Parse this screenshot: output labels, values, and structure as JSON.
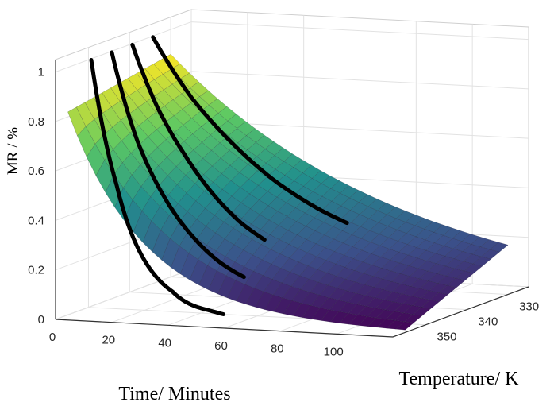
{
  "chart_data": {
    "type": "surface",
    "zlabel": "MR / %",
    "xlabel": "Time/ Minutes",
    "ylabel": "Temperature/ K",
    "x_ticks": [
      "0",
      "20",
      "40",
      "60",
      "80",
      "100"
    ],
    "y_ticks": [
      "330",
      "340",
      "350"
    ],
    "z_ticks": [
      "0",
      "0.2",
      "0.4",
      "0.6",
      "0.8",
      "1"
    ],
    "xlim": [
      0,
      120
    ],
    "ylim": [
      325,
      358
    ],
    "zlim": [
      0,
      1.05
    ],
    "grid": true,
    "colormap": [
      "#440154",
      "#3b528b",
      "#21908d",
      "#5dc963",
      "#fde725"
    ],
    "surface": {
      "description_values": "model surface MR(t, T)",
      "t_range": [
        0,
        120
      ],
      "T_range": [
        330,
        355
      ],
      "MR_at_t0": [
        0.82,
        0.9
      ],
      "MR_at_t120": [
        0.01,
        0.2
      ]
    },
    "series": [
      {
        "values": [
          [
            1,
            1.0
          ],
          [
            10,
            0.5
          ],
          [
            20,
            0.2
          ],
          [
            30,
            0.08
          ],
          [
            40,
            0.02
          ],
          [
            48,
            0.0
          ]
        ]
      },
      {
        "values": [
          [
            1,
            1.0
          ],
          [
            10,
            0.65
          ],
          [
            20,
            0.42
          ],
          [
            30,
            0.27
          ],
          [
            40,
            0.17
          ],
          [
            48,
            0.12
          ]
        ]
      },
      {
        "values": [
          [
            1,
            1.0
          ],
          [
            10,
            0.75
          ],
          [
            20,
            0.56
          ],
          [
            30,
            0.41
          ],
          [
            40,
            0.3
          ],
          [
            48,
            0.24
          ]
        ]
      },
      {
        "values": [
          [
            1,
            1.0
          ],
          [
            15,
            0.76
          ],
          [
            30,
            0.58
          ],
          [
            45,
            0.44
          ],
          [
            60,
            0.34
          ],
          [
            70,
            0.29
          ]
        ]
      }
    ],
    "series_temperature": [
      350,
      345,
      340,
      335
    ]
  }
}
